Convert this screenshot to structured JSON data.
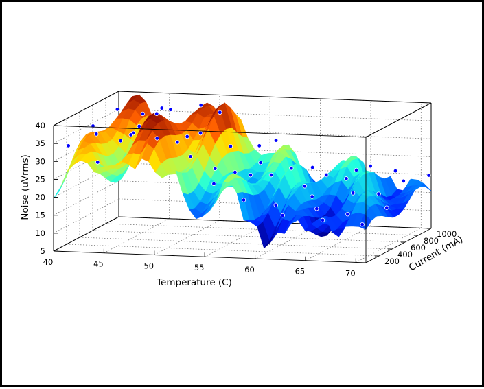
{
  "chart_data": {
    "type": "surface3d",
    "title": "",
    "xlabel": "Temperature (C)",
    "ylabel": "Current (mA)",
    "zlabel": "Noise (uVrms)",
    "xlim": [
      40,
      71
    ],
    "ylim": [
      0,
      1000
    ],
    "zlim": [
      5,
      40
    ],
    "xticks": [
      "40",
      "45",
      "50",
      "55",
      "60",
      "65",
      "70"
    ],
    "yticks": [
      "200",
      "400",
      "600",
      "800",
      "1000"
    ],
    "zticks": [
      "5",
      "10",
      "15",
      "20",
      "25",
      "30",
      "35",
      "40"
    ],
    "grid": true,
    "colormap": "jet",
    "marker_color": "#0000ff",
    "ridge_profile": {
      "x": [
        40,
        41.5,
        43,
        44,
        46,
        47,
        48,
        49,
        50,
        51,
        52,
        53,
        54,
        55,
        56,
        57,
        58,
        59,
        60,
        61,
        62,
        63,
        64,
        65,
        66,
        67,
        68,
        69,
        70,
        71
      ],
      "z": [
        31,
        37,
        34,
        29,
        35,
        39,
        36,
        39,
        33,
        31,
        37,
        30,
        25,
        24,
        23,
        28,
        26,
        18,
        24,
        17,
        23,
        20,
        22,
        17,
        21,
        24,
        18,
        21,
        19,
        17
      ]
    },
    "sample_points": [
      [
        40.5,
        150,
        33
      ],
      [
        41.2,
        420,
        36
      ],
      [
        41.8,
        700,
        38
      ],
      [
        42.3,
        300,
        35
      ],
      [
        43.0,
        850,
        32
      ],
      [
        43.6,
        120,
        29
      ],
      [
        44.3,
        560,
        33
      ],
      [
        45.1,
        240,
        34
      ],
      [
        45.7,
        780,
        38
      ],
      [
        46.2,
        410,
        40
      ],
      [
        46.9,
        120,
        37
      ],
      [
        47.4,
        650,
        39
      ],
      [
        48.1,
        330,
        41
      ],
      [
        48.8,
        900,
        38
      ],
      [
        49.3,
        150,
        36
      ],
      [
        49.9,
        520,
        33
      ],
      [
        50.6,
        260,
        34
      ],
      [
        51.2,
        820,
        37
      ],
      [
        51.8,
        430,
        35
      ],
      [
        52.5,
        170,
        31
      ],
      [
        53.1,
        690,
        29
      ],
      [
        53.7,
        360,
        26
      ],
      [
        54.4,
        930,
        27
      ],
      [
        55.0,
        140,
        24
      ],
      [
        55.6,
        610,
        22
      ],
      [
        56.2,
        280,
        26
      ],
      [
        56.9,
        800,
        30
      ],
      [
        57.5,
        470,
        27
      ],
      [
        58.1,
        120,
        20
      ],
      [
        58.8,
        740,
        23
      ],
      [
        59.4,
        340,
        25
      ],
      [
        60.0,
        880,
        22
      ],
      [
        60.7,
        210,
        18
      ],
      [
        61.3,
        560,
        20
      ],
      [
        61.9,
        130,
        16
      ],
      [
        62.6,
        690,
        22
      ],
      [
        63.2,
        380,
        19
      ],
      [
        63.9,
        950,
        21
      ],
      [
        64.5,
        250,
        17
      ],
      [
        65.1,
        610,
        22
      ],
      [
        65.8,
        140,
        15
      ],
      [
        66.4,
        780,
        24
      ],
      [
        67.0,
        420,
        20
      ],
      [
        67.7,
        230,
        16
      ],
      [
        68.3,
        870,
        22
      ],
      [
        68.9,
        520,
        19
      ],
      [
        69.6,
        160,
        14
      ],
      [
        70.2,
        700,
        21
      ],
      [
        70.8,
        350,
        17
      ],
      [
        70.9,
        980,
        20
      ]
    ]
  }
}
